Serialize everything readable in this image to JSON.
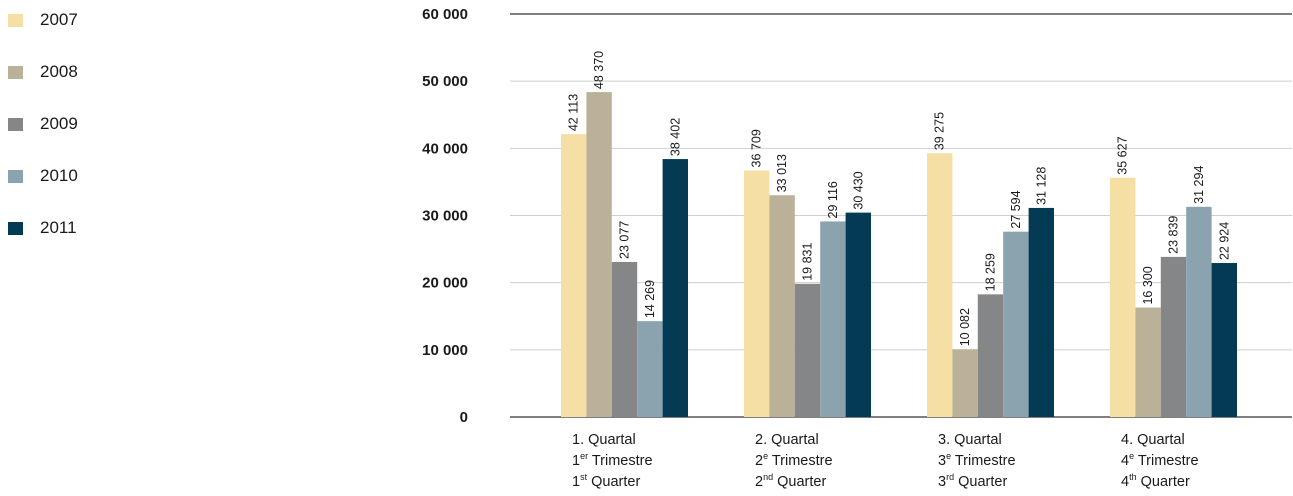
{
  "chart_data": {
    "type": "bar",
    "title": "",
    "xlabel": "",
    "ylabel": "",
    "ylim": [
      0,
      60000
    ],
    "y_ticks": [
      0,
      10000,
      20000,
      30000,
      40000,
      50000,
      60000
    ],
    "y_tick_labels": [
      "0",
      "10 000",
      "20 000",
      "30 000",
      "40 000",
      "50 000",
      "60 000"
    ],
    "grid": true,
    "legend_placement": "top-left",
    "categories": [
      {
        "lines": [
          {
            "base": "1. Quartal",
            "sup": "",
            "rest": ""
          },
          {
            "base": "1",
            "sup": "er",
            "rest": " Trimestre"
          },
          {
            "base": "1",
            "sup": "st",
            "rest": " Quarter"
          }
        ]
      },
      {
        "lines": [
          {
            "base": "2. Quartal",
            "sup": "",
            "rest": ""
          },
          {
            "base": "2",
            "sup": "e",
            "rest": " Trimestre"
          },
          {
            "base": "2",
            "sup": "nd",
            "rest": " Quarter"
          }
        ]
      },
      {
        "lines": [
          {
            "base": "3. Quartal",
            "sup": "",
            "rest": ""
          },
          {
            "base": "3",
            "sup": "e",
            "rest": " Trimestre"
          },
          {
            "base": "3",
            "sup": "rd",
            "rest": " Quarter"
          }
        ]
      },
      {
        "lines": [
          {
            "base": "4. Quartal",
            "sup": "",
            "rest": ""
          },
          {
            "base": "4",
            "sup": "e",
            "rest": " Trimestre"
          },
          {
            "base": "4",
            "sup": "th",
            "rest": " Quarter"
          }
        ]
      }
    ],
    "series": [
      {
        "name": "2007",
        "color": "#f5dfa4",
        "values": [
          42113,
          36709,
          39275,
          35627
        ],
        "labels": [
          "42 113",
          "36 709",
          "39 275",
          "35 627"
        ]
      },
      {
        "name": "2008",
        "color": "#bbb098",
        "values": [
          48370,
          33013,
          10082,
          16300
        ],
        "labels": [
          "48 370",
          "33 013",
          "10 082",
          "16 300"
        ]
      },
      {
        "name": "2009",
        "color": "#858688",
        "values": [
          23077,
          19831,
          18259,
          23839
        ],
        "labels": [
          "23 077",
          "19 831",
          "18 259",
          "23 839"
        ]
      },
      {
        "name": "2010",
        "color": "#8ba3ae",
        "values": [
          14269,
          29116,
          27594,
          31294
        ],
        "labels": [
          "14 269",
          "29 116",
          "27 594",
          "31 294"
        ]
      },
      {
        "name": "2011",
        "color": "#053a55",
        "values": [
          38402,
          30430,
          31128,
          22924
        ],
        "labels": [
          "38 402",
          "30 430",
          "31 128",
          "22 924"
        ]
      }
    ]
  }
}
